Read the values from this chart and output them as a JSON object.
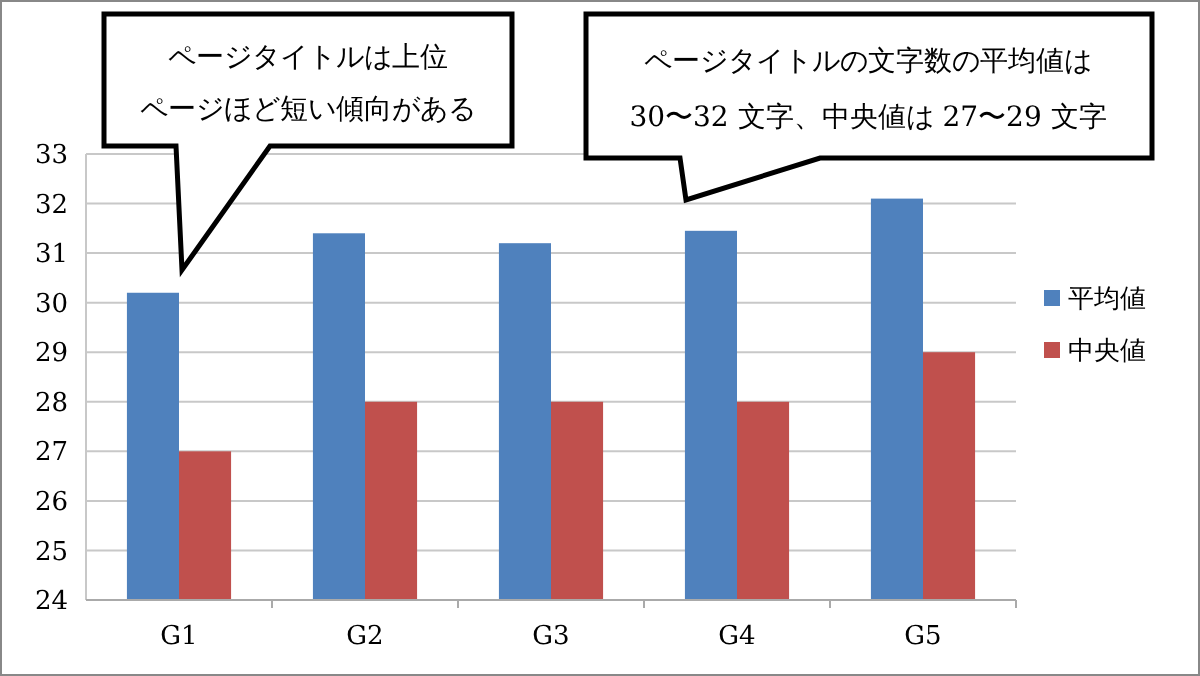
{
  "chart_data": {
    "type": "bar",
    "categories": [
      "G1",
      "G2",
      "G3",
      "G4",
      "G5"
    ],
    "series": [
      {
        "name": "平均値",
        "color": "#4f81bd",
        "values": [
          30.2,
          31.4,
          31.2,
          31.45,
          32.1
        ]
      },
      {
        "name": "中央値",
        "color": "#c0504d",
        "values": [
          27,
          28,
          28,
          28,
          29
        ]
      }
    ],
    "ylim": [
      24,
      33
    ],
    "yticks": [
      24,
      25,
      26,
      27,
      28,
      29,
      30,
      31,
      32,
      33
    ],
    "grid": "y",
    "legend": "right",
    "annotations": [
      "ページタイトルは上位ページほど短い傾向がある",
      "ページタイトルの文字数の平均値は30〜32 文字、中央値は 27〜29 文字"
    ]
  }
}
